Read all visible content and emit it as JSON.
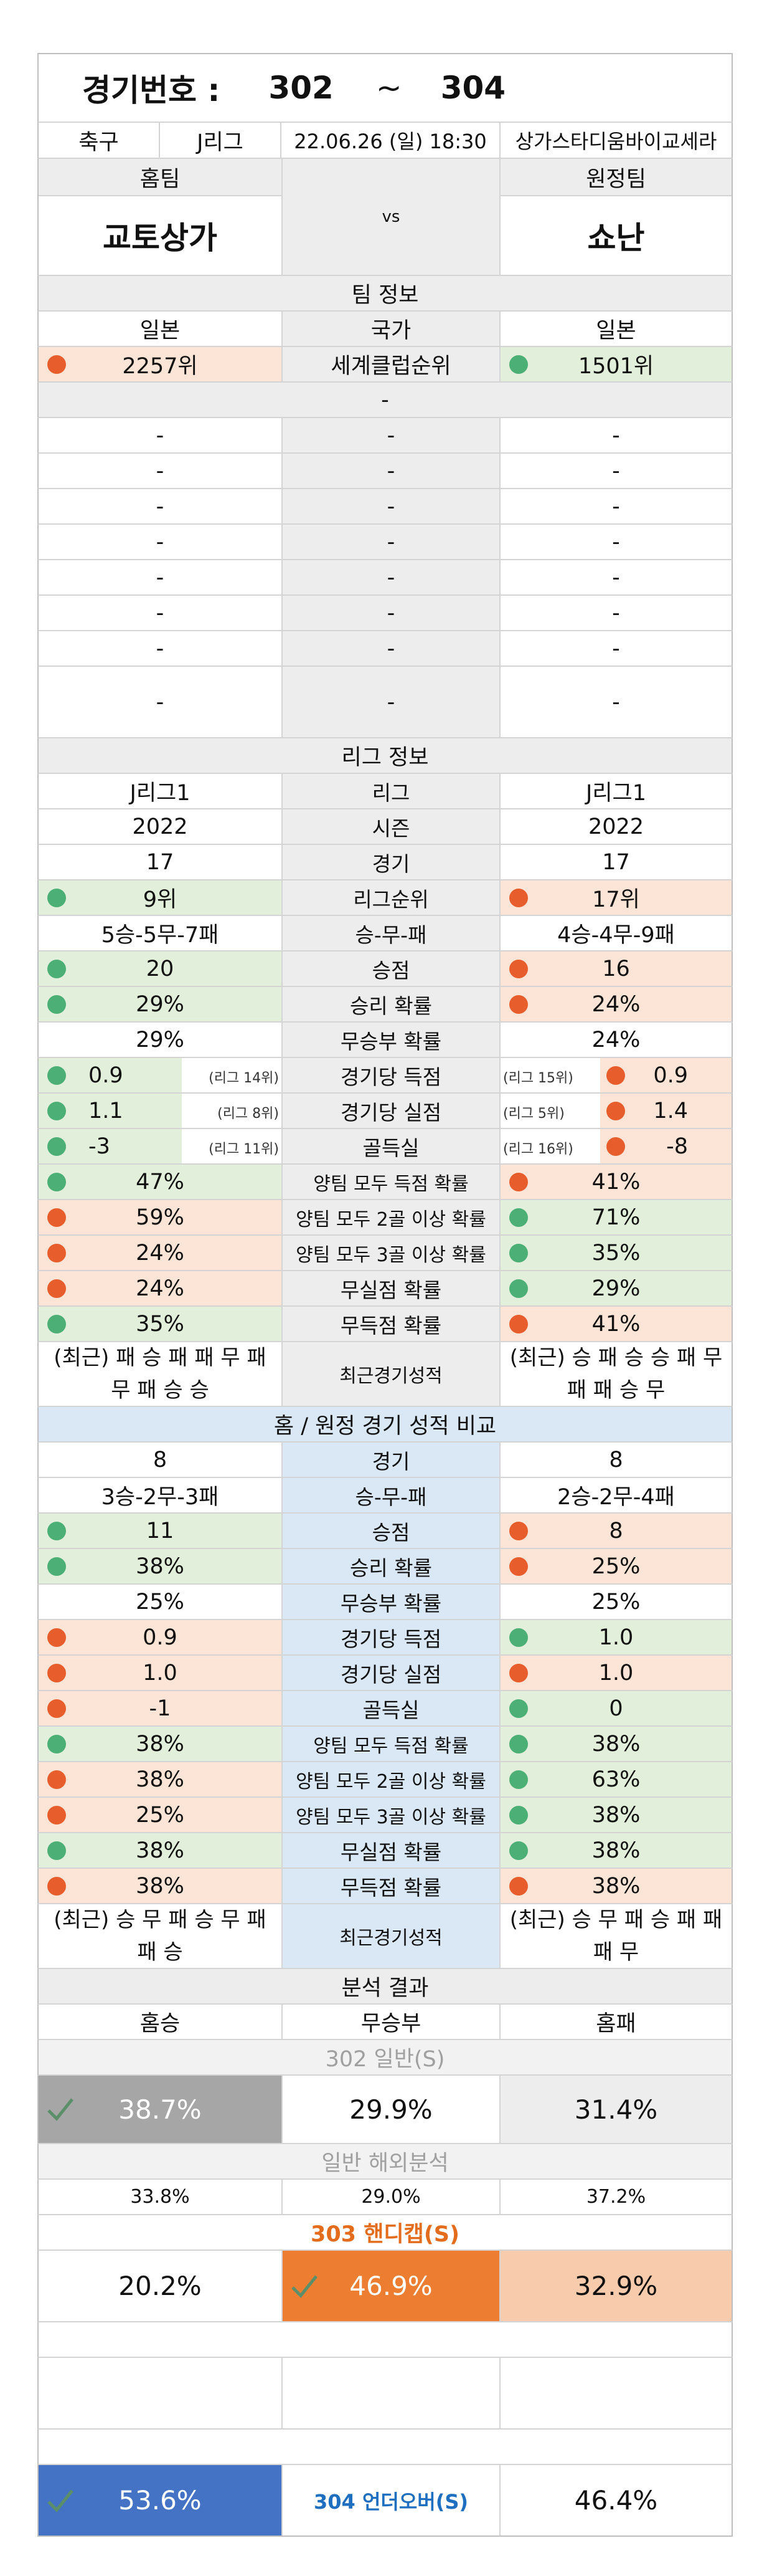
{
  "header": {
    "title_label": "경기번호 :",
    "from": "302",
    "tilde": "~",
    "to": "304"
  },
  "match": {
    "sport": "축구",
    "league": "J리그",
    "datetime": "22.06.26 (일) 18:30",
    "venue": "상가스타디움바이교세라"
  },
  "teams": {
    "home_label": "홈팀",
    "away_label": "원정팀",
    "home": "교토상가",
    "vs": "vs",
    "away": "쇼난"
  },
  "team_info": {
    "section": "팀 정보",
    "country_label": "국가",
    "home_country": "일본",
    "away_country": "일본",
    "rank_label": "세계클럽순위",
    "home_rank": "2257위",
    "away_rank": "1501위",
    "sub": "-",
    "dash": "-"
  },
  "league_info": {
    "section": "리그 정보",
    "rows": [
      {
        "l": "J리그1",
        "m": "리그",
        "r": "J리그1"
      },
      {
        "l": "2022",
        "m": "시즌",
        "r": "2022"
      },
      {
        "l": "17",
        "m": "경기",
        "r": "17"
      },
      {
        "l": "9위",
        "m": "리그순위",
        "r": "17위"
      },
      {
        "l": "5승-5무-7패",
        "m": "승-무-패",
        "r": "4승-4무-9패"
      },
      {
        "l": "20",
        "m": "승점",
        "r": "16"
      },
      {
        "l": "29%",
        "m": "승리 확률",
        "r": "24%"
      },
      {
        "l": "29%",
        "m": "무승부 확률",
        "r": "24%"
      },
      {
        "l": "0.9",
        "lr": "(리그 14위)",
        "m": "경기당 득점",
        "r": "0.9",
        "rr": "(리그 15위)"
      },
      {
        "l": "1.1",
        "lr": "(리그 8위)",
        "m": "경기당 실점",
        "r": "1.4",
        "rr": "(리그 5위)"
      },
      {
        "l": "-3",
        "lr": "(리그 11위)",
        "m": "골득실",
        "r": "-8",
        "rr": "(리그 16위)"
      },
      {
        "l": "47%",
        "m": "양팀 모두 득점 확률",
        "r": "41%"
      },
      {
        "l": "59%",
        "m": "양팀 모두 2골 이상 확률",
        "r": "71%"
      },
      {
        "l": "24%",
        "m": "양팀 모두 3골 이상 확률",
        "r": "35%"
      },
      {
        "l": "24%",
        "m": "무실점 확률",
        "r": "29%"
      },
      {
        "l": "35%",
        "m": "무득점 확률",
        "r": "41%"
      }
    ],
    "recent_label": "최근경기성적",
    "home_recent": "(최근) 패 승 패 패 무 패 무 패 승 승",
    "away_recent": "(최근) 승 패 승 승 패 무 패 패 승 무"
  },
  "homeaway": {
    "section": "홈 / 원정 경기 성적 비교",
    "rows": [
      {
        "l": "8",
        "m": "경기",
        "r": "8"
      },
      {
        "l": "3승-2무-3패",
        "m": "승-무-패",
        "r": "2승-2무-4패"
      },
      {
        "l": "11",
        "m": "승점",
        "r": "8"
      },
      {
        "l": "38%",
        "m": "승리 확률",
        "r": "25%"
      },
      {
        "l": "25%",
        "m": "무승부 확률",
        "r": "25%"
      },
      {
        "l": "0.9",
        "m": "경기당 득점",
        "r": "1.0"
      },
      {
        "l": "1.0",
        "m": "경기당 실점",
        "r": "1.0"
      },
      {
        "l": "-1",
        "m": "골득실",
        "r": "0"
      },
      {
        "l": "38%",
        "m": "양팀 모두 득점 확률",
        "r": "38%"
      },
      {
        "l": "38%",
        "m": "양팀 모두 2골 이상 확률",
        "r": "63%"
      },
      {
        "l": "25%",
        "m": "양팀 모두 3골 이상 확률",
        "r": "38%"
      },
      {
        "l": "38%",
        "m": "무실점 확률",
        "r": "38%"
      },
      {
        "l": "38%",
        "m": "무득점 확률",
        "r": "38%"
      }
    ],
    "recent_label": "최근경기성적",
    "home_recent": "(최근) 승 무 패 승 무 패 패 승",
    "away_recent": "(최근) 승 무 패 승 패 패 패 무"
  },
  "analysis": {
    "section": "분석 결과",
    "home_win": "홈승",
    "draw": "무승부",
    "home_loss": "홈패",
    "g302": "302 일반(S)",
    "p302": [
      "38.7%",
      "29.9%",
      "31.4%"
    ],
    "overseas": "일반 해외분석",
    "pov": [
      "33.8%",
      "29.0%",
      "37.2%"
    ],
    "g303": "303 핸디캡(S)",
    "p303": [
      "20.2%",
      "46.9%",
      "32.9%"
    ],
    "g304": "304 언더오버(S)",
    "p304": [
      "53.6%",
      "46.4%"
    ]
  },
  "colors": {
    "green": "#e2efda",
    "orange": "#fce4d6",
    "gray": "#a6a6a6",
    "accent_orange": "#ed7d31",
    "light_orange": "#f8cbad",
    "blue": "#4472c4"
  }
}
